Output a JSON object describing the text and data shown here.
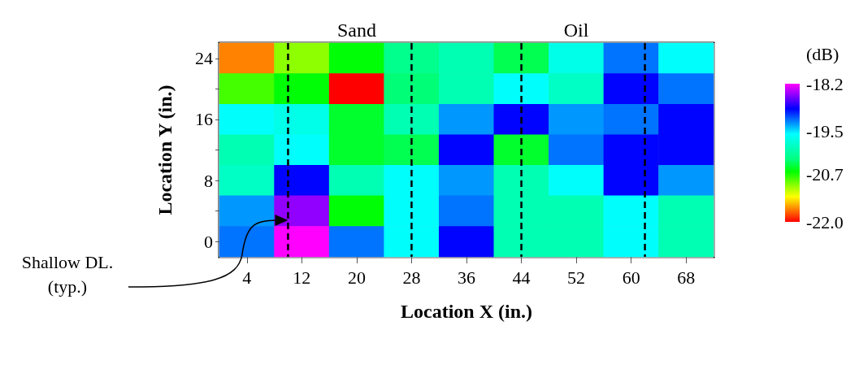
{
  "chart_data": {
    "type": "heatmap",
    "xlabel": "Location X (in.)",
    "ylabel": "Location Y (in.)",
    "clabel": "(dB)",
    "categories": [
      "4",
      "12",
      "20",
      "28",
      "36",
      "44",
      "52",
      "60",
      "68"
    ],
    "y_categories": [
      "24",
      null,
      "16",
      null,
      "8",
      null,
      "0"
    ],
    "cells": [
      [
        -21.65,
        -21.0,
        -20.6,
        -20.2,
        -20.0,
        -20.4,
        -19.7,
        -19.2,
        -19.6
      ],
      [
        -20.8,
        -20.6,
        -22.0,
        -20.3,
        -20.0,
        -19.6,
        -19.9,
        -18.9,
        -19.2
      ],
      [
        -19.6,
        -19.7,
        -20.5,
        -20.0,
        -19.3,
        -18.9,
        -19.3,
        -19.2,
        -18.9
      ],
      [
        -20.0,
        -19.6,
        -20.5,
        -20.4,
        -18.9,
        -20.5,
        -19.2,
        -18.9,
        -18.9
      ],
      [
        -19.9,
        -18.9,
        -20.0,
        -19.6,
        -19.3,
        -20.0,
        -19.6,
        -18.9,
        -19.3
      ],
      [
        -19.3,
        -18.5,
        -20.6,
        -19.6,
        -19.2,
        -20.0,
        -20.0,
        -19.6,
        -20.0
      ],
      [
        -19.2,
        -18.2,
        -19.2,
        -19.6,
        -18.9,
        -20.0,
        -20.0,
        -19.6,
        -20.0
      ]
    ],
    "clim": [
      -22.0,
      -18.2
    ],
    "cticks": [
      -18.2,
      -19.5,
      -20.7,
      {
        "value": -22,
        "label": "-22.0"
      }
    ],
    "colors": [
      "#ff0000",
      "#ff8000",
      "#ffff00",
      "#80ff00",
      "#00ff00",
      "#00ff80",
      "#00ffc0",
      "#00ffff",
      "#0080ff",
      "#0000ff",
      "#8000ff",
      "#ff00ff"
    ],
    "grid": true,
    "ref_lines": [
      {
        "axis": "x",
        "value": "28",
        "label": null,
        "line_style": "dashed"
      },
      {
        "axis": "x",
        "value": "44",
        "label": null,
        "line_style": "dashed"
      }
    ],
    "annotations": [
      "Sand",
      "Oil",
      "Shallow DL. (typ.)"
    ]
  }
}
